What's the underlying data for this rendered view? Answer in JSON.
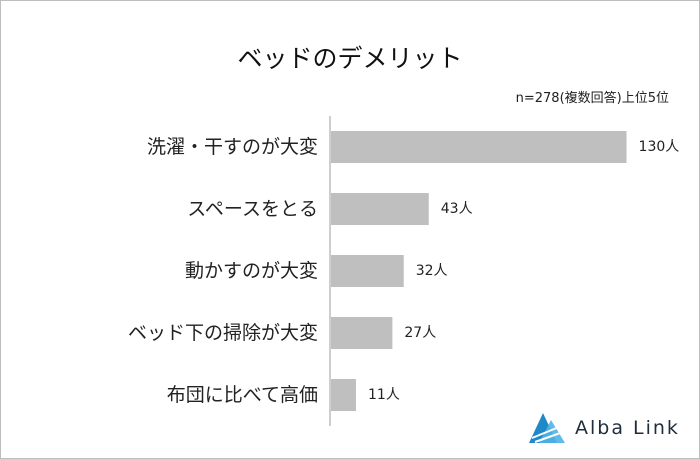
{
  "chart_data": {
    "type": "bar",
    "orientation": "horizontal",
    "title": "ベッドのデメリット",
    "note": "n=278(複数回答)上位5位",
    "categories": [
      "洗濯・干すのが大変",
      "スペースをとる",
      "動かすのが大変",
      "ベッド下の掃除が大変",
      "布団に比べて高価"
    ],
    "values": [
      130,
      43,
      32,
      27,
      11
    ],
    "data_labels": [
      "130人",
      "43人",
      "32人",
      "27人",
      "11人"
    ],
    "unit": "人",
    "xlim": [
      0,
      150
    ],
    "grid": false,
    "bar_color": "#bfbfbf"
  },
  "brand": {
    "name": "Alba Link",
    "color": "#1e88c8"
  }
}
